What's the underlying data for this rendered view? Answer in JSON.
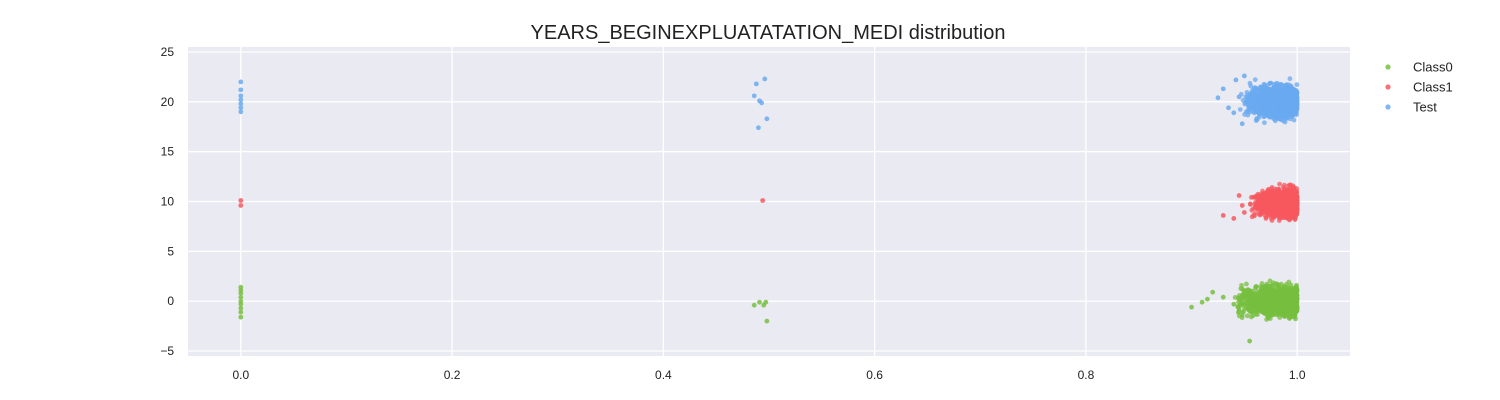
{
  "chart_data": {
    "type": "scatter",
    "title": "YEARS_BEGINEXPLUATATATION_MEDI distribution",
    "xlabel": "",
    "ylabel": "",
    "xlim": [
      -0.05,
      1.05
    ],
    "ylim": [
      -5.5,
      25.5
    ],
    "x_ticks": [
      0.0,
      0.2,
      0.4,
      0.6,
      0.8,
      1.0
    ],
    "x_tick_labels": [
      "0.0",
      "0.2",
      "0.4",
      "0.6",
      "0.8",
      "1.0"
    ],
    "y_ticks": [
      -5,
      0,
      5,
      10,
      15,
      20,
      25
    ],
    "y_tick_labels": [
      "−5",
      "0",
      "5",
      "10",
      "15",
      "20",
      "25"
    ],
    "grid": true,
    "legend_position": "right",
    "series": [
      {
        "name": "Class0",
        "color": "#77bf3f",
        "points": [
          [
            0.0,
            1.4
          ],
          [
            0.0,
            1.1
          ],
          [
            0.0,
            0.8
          ],
          [
            0.0,
            0.4
          ],
          [
            0.0,
            0.0
          ],
          [
            0.0,
            -0.3
          ],
          [
            0.0,
            -0.7
          ],
          [
            0.0,
            -1.1
          ],
          [
            0.0,
            -1.6
          ],
          [
            0.486,
            -0.4
          ],
          [
            0.491,
            -0.1
          ],
          [
            0.495,
            -0.4
          ],
          [
            0.497,
            -0.1
          ],
          [
            0.498,
            -2.0
          ],
          [
            0.9,
            -0.6
          ],
          [
            0.91,
            -0.1
          ],
          [
            0.915,
            0.2
          ],
          [
            0.92,
            0.9
          ],
          [
            0.93,
            0.4
          ],
          [
            0.94,
            -0.3
          ],
          [
            0.945,
            -1.0
          ],
          [
            0.95,
            0.7
          ],
          [
            0.948,
            -1.4
          ],
          [
            0.955,
            -4.0
          ]
        ],
        "cluster": {
          "x_range": [
            0.94,
            1.0
          ],
          "y_center": 0.0,
          "y_spread": 3.2
        }
      },
      {
        "name": "Class1",
        "color": "#f7585f",
        "points": [
          [
            0.0,
            10.1
          ],
          [
            0.0,
            9.6
          ],
          [
            0.494,
            10.1
          ],
          [
            0.93,
            8.6
          ],
          [
            0.94,
            8.3
          ],
          [
            0.945,
            10.6
          ],
          [
            0.948,
            9.6
          ],
          [
            0.95,
            8.9
          ]
        ],
        "cluster": {
          "x_range": [
            0.955,
            1.0
          ],
          "y_center": 9.8,
          "y_spread": 3.0
        }
      },
      {
        "name": "Test",
        "color": "#6aaaf0",
        "points": [
          [
            0.0,
            22.0
          ],
          [
            0.0,
            21.2
          ],
          [
            0.0,
            20.6
          ],
          [
            0.0,
            20.2
          ],
          [
            0.0,
            19.8
          ],
          [
            0.0,
            19.4
          ],
          [
            0.0,
            19.0
          ],
          [
            0.486,
            20.6
          ],
          [
            0.488,
            21.8
          ],
          [
            0.491,
            20.1
          ],
          [
            0.493,
            19.9
          ],
          [
            0.49,
            17.4
          ],
          [
            0.496,
            22.3
          ],
          [
            0.498,
            18.3
          ],
          [
            0.925,
            20.4
          ],
          [
            0.93,
            21.3
          ],
          [
            0.935,
            19.4
          ],
          [
            0.94,
            18.9
          ],
          [
            0.942,
            22.2
          ],
          [
            0.945,
            20.5
          ],
          [
            0.948,
            17.8
          ],
          [
            0.95,
            22.6
          ]
        ],
        "cluster": {
          "x_range": [
            0.945,
            1.0
          ],
          "y_center": 20.0,
          "y_spread": 3.5
        }
      }
    ]
  }
}
